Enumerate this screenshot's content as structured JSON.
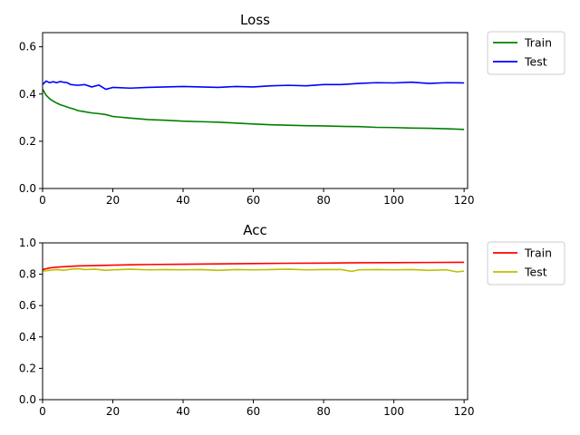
{
  "chart_data": [
    {
      "type": "line",
      "title": "Loss",
      "xlabel": "",
      "ylabel": "",
      "xlim": [
        0,
        121
      ],
      "ylim": [
        0,
        0.66
      ],
      "xticks": [
        0,
        20,
        40,
        60,
        80,
        100,
        120
      ],
      "xtick_labels": [
        "0",
        "20",
        "40",
        "60",
        "80",
        "100",
        "120"
      ],
      "yticks": [
        0.0,
        0.2,
        0.4,
        0.6
      ],
      "ytick_labels": [
        "0.0",
        "0.2",
        "0.4",
        "0.6"
      ],
      "legend_position": "outside-top-right",
      "series": [
        {
          "name": "Train",
          "color": "#008000",
          "x": [
            0,
            1,
            2,
            3,
            4,
            5,
            6,
            7,
            8,
            9,
            10,
            12,
            14,
            16,
            18,
            20,
            25,
            30,
            35,
            40,
            45,
            50,
            55,
            60,
            65,
            70,
            75,
            80,
            85,
            90,
            95,
            100,
            105,
            110,
            115,
            120
          ],
          "values": [
            0.42,
            0.395,
            0.38,
            0.37,
            0.362,
            0.355,
            0.35,
            0.345,
            0.34,
            0.336,
            0.33,
            0.325,
            0.32,
            0.317,
            0.313,
            0.305,
            0.298,
            0.292,
            0.289,
            0.285,
            0.283,
            0.281,
            0.277,
            0.273,
            0.27,
            0.268,
            0.266,
            0.265,
            0.263,
            0.262,
            0.259,
            0.258,
            0.256,
            0.255,
            0.253,
            0.25
          ]
        },
        {
          "name": "Test",
          "color": "#0000ff",
          "x": [
            0,
            1,
            2,
            3,
            4,
            5,
            6,
            7,
            8,
            10,
            12,
            14,
            16,
            18,
            20,
            25,
            30,
            35,
            40,
            45,
            50,
            55,
            60,
            65,
            70,
            75,
            80,
            85,
            90,
            95,
            100,
            105,
            110,
            115,
            120
          ],
          "values": [
            0.44,
            0.455,
            0.448,
            0.452,
            0.448,
            0.453,
            0.45,
            0.448,
            0.44,
            0.437,
            0.44,
            0.43,
            0.438,
            0.42,
            0.428,
            0.425,
            0.428,
            0.43,
            0.432,
            0.43,
            0.428,
            0.432,
            0.43,
            0.435,
            0.437,
            0.435,
            0.44,
            0.44,
            0.445,
            0.448,
            0.447,
            0.45,
            0.445,
            0.448,
            0.447
          ]
        }
      ]
    },
    {
      "type": "line",
      "title": "Acc",
      "xlabel": "",
      "ylabel": "",
      "xlim": [
        0,
        121
      ],
      "ylim": [
        0,
        1.0
      ],
      "xticks": [
        0,
        20,
        40,
        60,
        80,
        100,
        120
      ],
      "xtick_labels": [
        "0",
        "20",
        "40",
        "60",
        "80",
        "100",
        "120"
      ],
      "yticks": [
        0.0,
        0.2,
        0.4,
        0.6,
        0.8,
        1.0
      ],
      "ytick_labels": [
        "0.0",
        "0.2",
        "0.4",
        "0.6",
        "0.8",
        "1.0"
      ],
      "legend_position": "outside-top-right",
      "series": [
        {
          "name": "Train",
          "color": "#ff0000",
          "x": [
            0,
            2,
            4,
            6,
            8,
            10,
            15,
            20,
            25,
            30,
            40,
            50,
            60,
            70,
            80,
            90,
            100,
            110,
            120
          ],
          "values": [
            0.83,
            0.84,
            0.845,
            0.848,
            0.85,
            0.853,
            0.855,
            0.858,
            0.86,
            0.862,
            0.864,
            0.866,
            0.868,
            0.87,
            0.871,
            0.873,
            0.874,
            0.875,
            0.876
          ]
        },
        {
          "name": "Test",
          "color": "#bfbf00",
          "x": [
            0,
            2,
            4,
            6,
            8,
            10,
            12,
            15,
            18,
            20,
            25,
            30,
            35,
            40,
            45,
            50,
            55,
            60,
            65,
            70,
            75,
            80,
            85,
            88,
            90,
            95,
            100,
            105,
            110,
            115,
            118,
            120
          ],
          "values": [
            0.82,
            0.825,
            0.83,
            0.825,
            0.832,
            0.835,
            0.83,
            0.832,
            0.825,
            0.828,
            0.832,
            0.828,
            0.83,
            0.828,
            0.83,
            0.825,
            0.83,
            0.828,
            0.83,
            0.832,
            0.828,
            0.83,
            0.83,
            0.818,
            0.828,
            0.83,
            0.828,
            0.83,
            0.825,
            0.828,
            0.815,
            0.82
          ]
        }
      ]
    }
  ]
}
